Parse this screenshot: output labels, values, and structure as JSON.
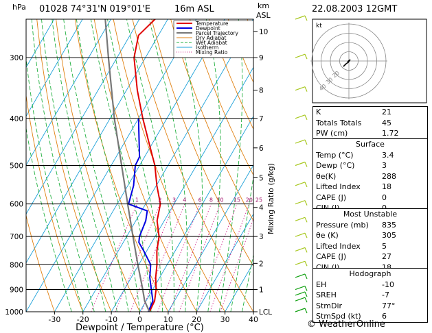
{
  "header": {
    "hpa": "hPa",
    "station": "01028  74°31'N  019°01'E",
    "height": "16m  ASL",
    "km": "km",
    "asl": "ASL",
    "datetime": "22.08.2003  12GMT"
  },
  "chart_data": {
    "type": "skew-t",
    "xlabel": "Dewpoint / Temperature (°C)",
    "ylabel_right": "Mixing Ratio (g/kg)",
    "xlim": [
      -40,
      40
    ],
    "x_ticks": [
      "-30",
      "-20",
      "-10",
      "0",
      "10",
      "20",
      "30",
      "40"
    ],
    "pressure_levels": [
      "300",
      "400",
      "500",
      "600",
      "700",
      "800",
      "900",
      "1000"
    ],
    "km_ticks": [
      "10",
      "9",
      "8",
      "7",
      "6",
      "5",
      "4",
      "3",
      "2",
      "1",
      "LCL"
    ],
    "mixing_ratio_labels": [
      "1",
      "2",
      "3",
      "4",
      "6",
      "8",
      "10",
      "15",
      "20",
      "25"
    ],
    "legend": [
      "Temperature",
      "Dewpoint",
      "Parcel Trajectory",
      "Dry Adiabat",
      "Wet Adiabat",
      "Isotherm",
      "Mixing Ratio"
    ],
    "series": [
      {
        "name": "Temperature",
        "color": "#e00000",
        "points": [
          [
            1000,
            3.4
          ],
          [
            950,
            3.0
          ],
          [
            900,
            1.2
          ],
          [
            850,
            -1.4
          ],
          [
            800,
            -3.6
          ],
          [
            750,
            -6.4
          ],
          [
            700,
            -8.6
          ],
          [
            650,
            -12.5
          ],
          [
            600,
            -14.8
          ],
          [
            550,
            -19.8
          ],
          [
            500,
            -24.6
          ],
          [
            450,
            -31.2
          ],
          [
            400,
            -38.5
          ],
          [
            350,
            -46.2
          ],
          [
            300,
            -54.0
          ],
          [
            270,
            -57.0
          ],
          [
            250,
            -54.5
          ],
          [
            230,
            -55.5
          ]
        ]
      },
      {
        "name": "Dewpoint",
        "color": "#0000e0",
        "points": [
          [
            1000,
            3.0
          ],
          [
            950,
            2.4
          ],
          [
            900,
            -0.5
          ],
          [
            850,
            -3.5
          ],
          [
            800,
            -5.8
          ],
          [
            750,
            -11.0
          ],
          [
            720,
            -14.5
          ],
          [
            700,
            -15.5
          ],
          [
            650,
            -16.5
          ],
          [
            620,
            -18.0
          ],
          [
            600,
            -26.0
          ],
          [
            550,
            -28.0
          ],
          [
            500,
            -31.5
          ],
          [
            480,
            -31.8
          ],
          [
            400,
            -40.0
          ]
        ]
      },
      {
        "name": "Parcel Trajectory",
        "color": "#777777",
        "points": [
          [
            1000,
            3.4
          ],
          [
            950,
            -0.5
          ],
          [
            900,
            -3.5
          ],
          [
            850,
            -6.8
          ],
          [
            800,
            -10.3
          ],
          [
            700,
            -17.8
          ],
          [
            600,
            -26.3
          ],
          [
            500,
            -36.3
          ],
          [
            400,
            -48.5
          ],
          [
            300,
            -63.0
          ],
          [
            250,
            -72.0
          ]
        ]
      }
    ]
  },
  "hodograph": {
    "label": "kt",
    "ring_labels": [
      "20",
      "30",
      "40"
    ]
  },
  "indices": [
    {
      "label": "K",
      "value": "21"
    },
    {
      "label": "Totals Totals",
      "value": "45"
    },
    {
      "label": "PW (cm)",
      "value": "1.72"
    }
  ],
  "surface": {
    "title": "Surface",
    "rows": [
      {
        "label": "Temp (°C)",
        "value": "3.4"
      },
      {
        "label": "Dewp (°C)",
        "value": "3"
      },
      {
        "label": "θe(K)",
        "value": "288"
      },
      {
        "label": "Lifted Index",
        "value": "18"
      },
      {
        "label": "CAPE (J)",
        "value": "0"
      },
      {
        "label": "CIN (J)",
        "value": "0"
      }
    ]
  },
  "most_unstable": {
    "title": "Most Unstable",
    "rows": [
      {
        "label": "Pressure (mb)",
        "value": "835"
      },
      {
        "label": "θe (K)",
        "value": "305"
      },
      {
        "label": "Lifted Index",
        "value": "5"
      },
      {
        "label": "CAPE (J)",
        "value": "27"
      },
      {
        "label": "CIN (J)",
        "value": "18"
      }
    ]
  },
  "hodograph_params": {
    "title": "Hodograph",
    "rows": [
      {
        "label": "EH",
        "value": "-10"
      },
      {
        "label": "SREH",
        "value": "-7"
      },
      {
        "label": "StmDir",
        "value": "77°"
      },
      {
        "label": "StmSpd (kt)",
        "value": "6"
      }
    ]
  },
  "footer": "© WeatherOnline"
}
